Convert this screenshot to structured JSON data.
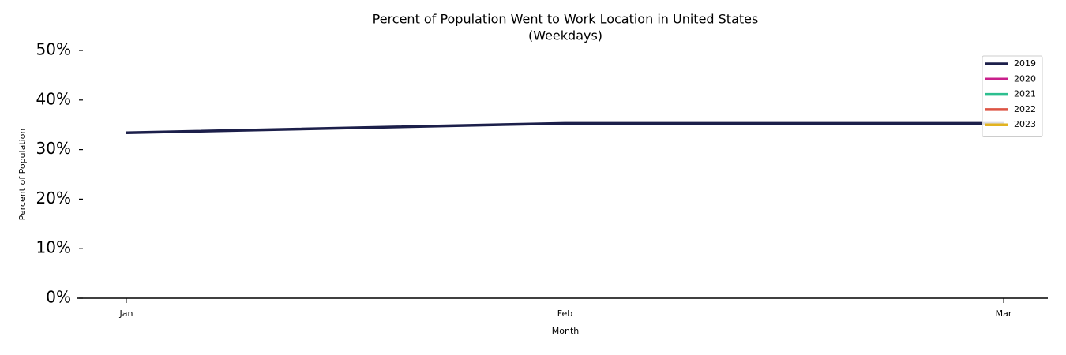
{
  "chart_data": {
    "type": "line",
    "title": "Percent of Population Went to Work Location in United States",
    "subtitle": "(Weekdays)",
    "x_label": "Month",
    "y_label": "Percent of Population",
    "categories": [
      "Jan",
      "Feb",
      "Mar"
    ],
    "series": [
      {
        "name": "2019",
        "color": "#1c1f4a",
        "values": [
          33.4,
          35.3,
          35.3
        ]
      },
      {
        "name": "2020",
        "color": "#c91f8b",
        "values": [
          null,
          null,
          null
        ]
      },
      {
        "name": "2021",
        "color": "#2dbf8f",
        "values": [
          null,
          null,
          null
        ]
      },
      {
        "name": "2022",
        "color": "#dd5444",
        "values": [
          null,
          null,
          null
        ]
      },
      {
        "name": "2023",
        "color": "#e2b320",
        "values": [
          null,
          null,
          null
        ]
      }
    ],
    "ylim": [
      0,
      50
    ],
    "yticks": [
      {
        "value": 0,
        "label": "0%"
      },
      {
        "value": 10,
        "label": "10%"
      },
      {
        "value": 20,
        "label": "20%"
      },
      {
        "value": 30,
        "label": "30%"
      },
      {
        "value": 40,
        "label": "40%"
      },
      {
        "value": 50,
        "label": "50%"
      }
    ],
    "legend": "upper right",
    "grid": false
  }
}
